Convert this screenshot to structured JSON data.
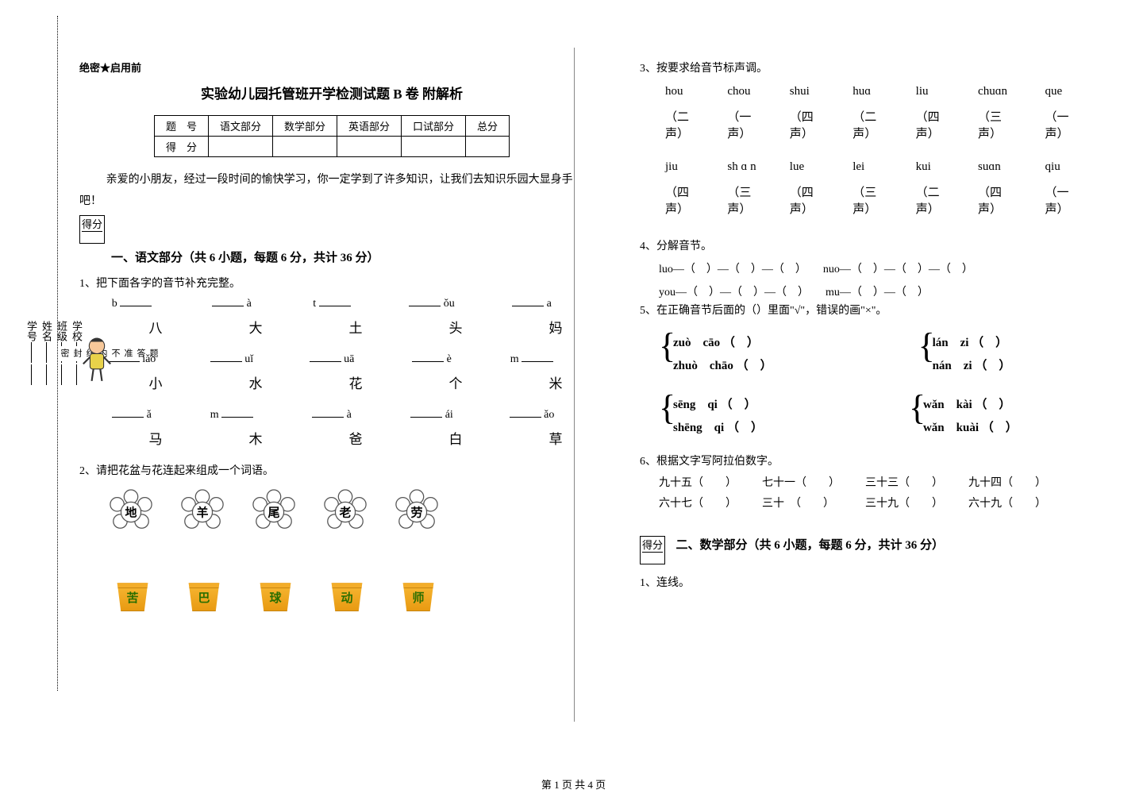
{
  "margin": {
    "fields": [
      "学校",
      "班级",
      "姓名",
      "学号"
    ],
    "dotted_chars": [
      "密",
      "封",
      "线",
      "内",
      "不",
      "准",
      "答",
      "题"
    ]
  },
  "header": {
    "note": "绝密★启用前",
    "title": "实验幼儿园托管班开学检测试题 B 卷 附解析",
    "table": {
      "row1": [
        "题　号",
        "语文部分",
        "数学部分",
        "英语部分",
        "口试部分",
        "总分"
      ],
      "row2": [
        "得　分",
        "",
        "",
        "",
        "",
        ""
      ]
    },
    "intro": "亲爱的小朋友，经过一段时间的愉快学习，你一定学到了许多知识，让我们去知识乐园大显身手吧！",
    "scorebox": "得分"
  },
  "sec1": {
    "heading": "一、语文部分（共 6 小题，每题 6 分，共计 36 分）",
    "q1": {
      "label": "1、把下面各字的音节补充完整。",
      "rows": [
        {
          "py": [
            "b ___",
            "___ à",
            "t ___",
            "___ ǒu",
            "___ a"
          ],
          "hz": [
            "八",
            "大",
            "土",
            "头",
            "妈"
          ]
        },
        {
          "py": [
            "___ iǎo",
            "___ uǐ",
            "___ uā",
            "___ è",
            "m ___"
          ],
          "hz": [
            "小",
            "水",
            "花",
            "个",
            "米"
          ]
        },
        {
          "py": [
            "___ ǎ",
            "m ___",
            "___ à",
            "___ ái",
            "___ ǎo"
          ],
          "hz": [
            "马",
            "木",
            "爸",
            "白",
            "草"
          ]
        }
      ]
    },
    "q2": {
      "label": "2、请把花盆与花连起来组成一个词语。",
      "flowers": [
        "地",
        "羊",
        "尾",
        "老",
        "劳"
      ],
      "pots": [
        "苦",
        "巴",
        "球",
        "动",
        "师"
      ]
    },
    "q3": {
      "label": "3、按要求给音节标声调。",
      "rows": [
        {
          "py": [
            "hou",
            "chou",
            "shui",
            "huɑ",
            "liu",
            "chuɑn",
            "que"
          ],
          "tn": [
            "（二声）",
            "（一声）",
            "（四声）",
            "（二 声）",
            "（四声）",
            "（三声）",
            "（一声）"
          ]
        },
        {
          "py": [
            "jiu",
            "sh ɑ n",
            "lue",
            "lei",
            "kui",
            "suɑn",
            "qiu"
          ],
          "tn": [
            "（四声）",
            "（三声）",
            "（四 声）",
            "（三声）",
            "（二声）",
            "（四 声）",
            "（一声）"
          ]
        }
      ]
    },
    "q4": {
      "label": "4、分解音节。",
      "lines": [
        "luo—（　）—（　）—（　）　　nuo—（　）—（　）—（　）",
        "you—（　）—（　）—（　）　　mu—（　）—（　）"
      ]
    },
    "q5": {
      "label": "5、在正确音节后面的（）里面\"√\"，错误的画\"×\"。",
      "pairs": [
        {
          "left": [
            "zuò　cāo （　）",
            "zhuò　chāo （　）"
          ],
          "right": [
            "lán　zi （　）",
            "nán　zi （　）"
          ]
        },
        {
          "left": [
            "sēng　qi （　）",
            "shēng　qi （　）"
          ],
          "right": [
            "wǎn　kài （　）",
            "wǎn　kuài （　）"
          ]
        }
      ]
    },
    "q6": {
      "label": "6、根据文字写阿拉伯数字。",
      "lines": [
        [
          "九十五（　　）",
          "七十一（　　）",
          "三十三（　　）",
          "九十四（　　）"
        ],
        [
          "六十七（　　）",
          "三十　（　　）",
          "三十九（　　）",
          "六十九（　　）"
        ]
      ]
    }
  },
  "sec2": {
    "heading": "二、数学部分（共 6 小题，每题 6 分，共计 36 分）",
    "q1": "1、连线。"
  },
  "footer": "第 1 页 共 4 页",
  "colors": {
    "flower_stroke": "#555",
    "pot_fill": "#f3ad2a"
  }
}
